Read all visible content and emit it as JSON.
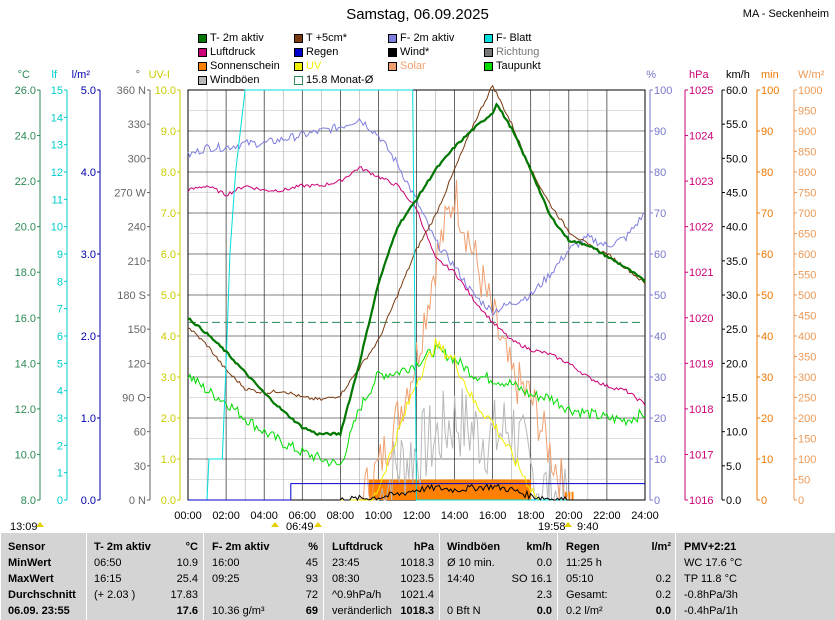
{
  "title": "Samstag, 06.09.2025",
  "station": "MA - Seckenheim",
  "legend": [
    {
      "label": "T- 2m aktiv",
      "color": "#007700",
      "box": true
    },
    {
      "label": "T +5cm*",
      "color": "#7a3a10",
      "box": true
    },
    {
      "label": "F- 2m aktiv",
      "color": "#7f7fdf",
      "box": true
    },
    {
      "label": "F- Blatt",
      "color": "#00dddd",
      "box": true
    },
    {
      "label": "Luftdruck",
      "color": "#cc0077",
      "box": true
    },
    {
      "label": "Regen",
      "color": "#0000cc",
      "box": true
    },
    {
      "label": "Wind*",
      "color": "#000000",
      "box": true
    },
    {
      "label": "Richtung",
      "color": "#777777",
      "box": true
    },
    {
      "label": "Sonnenschein",
      "color": "#ff8000",
      "box": true
    },
    {
      "label": "UV",
      "color": "#f0f000",
      "box": true
    },
    {
      "label": "Solar",
      "color": "#f0a070",
      "box": true
    },
    {
      "label": "Taupunkt",
      "color": "#00dd00",
      "box": true
    },
    {
      "label": "Windböen",
      "color": "#b8b8b8",
      "box": true
    },
    {
      "label": "15.8 Monat-Ø",
      "color": "#2c8a55",
      "box": false
    }
  ],
  "axes": {
    "left": [
      {
        "unit": "°C",
        "color": "#2c8a55",
        "ticks": [
          "26.0",
          "24.0",
          "22.0",
          "20.0",
          "18.0",
          "16.0",
          "14.0",
          "12.0",
          "10.0",
          "8.0"
        ]
      },
      {
        "unit": "lf",
        "color": "#00cccc",
        "ticks": [
          "15",
          "14",
          "13",
          "12",
          "11",
          "10",
          "9",
          "8",
          "7",
          "6",
          "5",
          "4",
          "3",
          "2",
          "1",
          "0"
        ]
      },
      {
        "unit": "l/m²",
        "color": "#0000aa",
        "ticks": [
          "5.0",
          "4.0",
          "3.0",
          "2.0",
          "1.0",
          "0.0"
        ]
      },
      {
        "unit": "°",
        "color": "#666666",
        "ticks": [
          "360 N",
          "330",
          "300",
          "270 W",
          "240",
          "210",
          "180 S",
          "150",
          "120",
          "90 O",
          "60",
          "30",
          "0 N"
        ]
      },
      {
        "unit": "UV-I",
        "color": "#cccc00",
        "ticks": [
          "10.0",
          "9.0",
          "8.0",
          "7.0",
          "6.0",
          "5.0",
          "4.0",
          "3.0",
          "2.0",
          "1.0",
          "0.0"
        ]
      }
    ],
    "right": [
      {
        "unit": "%",
        "color": "#7777cc",
        "ticks": [
          "100",
          "90",
          "80",
          "70",
          "60",
          "50",
          "40",
          "30",
          "20",
          "10",
          "0"
        ]
      },
      {
        "unit": "hPa",
        "color": "#cc0077",
        "ticks": [
          "1025",
          "1024",
          "1023",
          "1022",
          "1021",
          "1020",
          "1019",
          "1018",
          "1017",
          "1016"
        ]
      },
      {
        "unit": "km/h",
        "color": "#000000",
        "ticks": [
          "60.0",
          "55.0",
          "50.0",
          "45.0",
          "40.0",
          "35.0",
          "30.0",
          "25.0",
          "20.0",
          "15.0",
          "10.0",
          "5.0",
          "0.0"
        ]
      },
      {
        "unit": "min",
        "color": "#ee7700",
        "ticks": [
          "100",
          "90",
          "80",
          "70",
          "60",
          "50",
          "40",
          "30",
          "20",
          "10",
          "0"
        ]
      },
      {
        "unit": "W/m²",
        "color": "#ee9955",
        "ticks": [
          "1000",
          "950",
          "900",
          "850",
          "800",
          "750",
          "700",
          "650",
          "600",
          "550",
          "500",
          "450",
          "400",
          "350",
          "300",
          "250",
          "200",
          "150",
          "100",
          "50",
          "0"
        ]
      }
    ]
  },
  "time_ticks": [
    "00:00",
    "02:00",
    "04:00",
    "06:00",
    "08:00",
    "10:00",
    "12:00",
    "14:00",
    "16:00",
    "18:00",
    "20:00",
    "22:00",
    "24:00"
  ],
  "sun_events": {
    "sunrise_left": "13:09",
    "dawn": "06:49",
    "sunset": "19:58",
    "dusk": "9:40"
  },
  "chart_data": {
    "type": "line",
    "x_unit": "hour",
    "series": [
      {
        "name": "T- 2m aktiv",
        "unit": "°C",
        "values": [
          [
            0,
            16.0
          ],
          [
            1,
            15.3
          ],
          [
            2,
            14.5
          ],
          [
            3,
            13.6
          ],
          [
            4,
            12.7
          ],
          [
            5,
            11.9
          ],
          [
            6,
            11.2
          ],
          [
            6.8,
            10.9
          ],
          [
            7,
            10.9
          ],
          [
            8,
            10.9
          ],
          [
            9,
            14
          ],
          [
            10,
            17.5
          ],
          [
            11,
            20
          ],
          [
            12,
            21.2
          ],
          [
            13,
            22.5
          ],
          [
            14,
            23.5
          ],
          [
            15,
            24.3
          ],
          [
            16,
            25.0
          ],
          [
            16.2,
            25.4
          ],
          [
            17,
            24.3
          ],
          [
            18,
            22.5
          ],
          [
            19,
            20.5
          ],
          [
            20,
            19.4
          ],
          [
            21,
            19.2
          ],
          [
            22,
            18.7
          ],
          [
            23,
            18.2
          ],
          [
            24,
            17.6
          ]
        ]
      },
      {
        "name": "T +5cm*",
        "unit": "°C",
        "values": [
          [
            0,
            15.6
          ],
          [
            1,
            14.8
          ],
          [
            2,
            13.7
          ],
          [
            3,
            12.9
          ],
          [
            4,
            12.7
          ],
          [
            5,
            12.8
          ],
          [
            6,
            12.5
          ],
          [
            7,
            12.4
          ],
          [
            8,
            12.6
          ],
          [
            9,
            13.8
          ],
          [
            10,
            15.0
          ],
          [
            11,
            17.0
          ],
          [
            12,
            19.0
          ],
          [
            13,
            20.5
          ],
          [
            14,
            22.5
          ],
          [
            15,
            24.5
          ],
          [
            16,
            26.2
          ],
          [
            17,
            24.5
          ],
          [
            18,
            22.5
          ],
          [
            19,
            21.0
          ],
          [
            20,
            19.8
          ],
          [
            21,
            19.2
          ],
          [
            22,
            18.8
          ],
          [
            23,
            18.2
          ],
          [
            24,
            17.5
          ]
        ]
      },
      {
        "name": "F- 2m aktiv",
        "unit": "%",
        "values": [
          [
            0,
            84
          ],
          [
            1,
            86
          ],
          [
            2,
            86
          ],
          [
            3,
            87
          ],
          [
            4,
            87
          ],
          [
            5,
            88
          ],
          [
            6,
            89
          ],
          [
            7,
            90
          ],
          [
            8,
            91
          ],
          [
            9,
            93
          ],
          [
            10,
            89
          ],
          [
            11,
            82
          ],
          [
            12,
            73
          ],
          [
            13,
            63
          ],
          [
            14,
            57
          ],
          [
            15,
            50
          ],
          [
            16,
            46
          ],
          [
            17,
            48
          ],
          [
            18,
            50
          ],
          [
            19,
            55
          ],
          [
            20,
            61
          ],
          [
            21,
            64
          ],
          [
            22,
            62
          ],
          [
            23,
            64
          ],
          [
            24,
            70
          ]
        ]
      },
      {
        "name": "F- Blatt",
        "unit": "lf",
        "values": [
          [
            0,
            0
          ],
          [
            1.0,
            0
          ],
          [
            1.1,
            1.5
          ],
          [
            1.8,
            1.5
          ],
          [
            2.0,
            5
          ],
          [
            2.2,
            9
          ],
          [
            2.5,
            12
          ],
          [
            3,
            15
          ],
          [
            11.8,
            15
          ],
          [
            12.0,
            0
          ],
          [
            24,
            0
          ]
        ]
      },
      {
        "name": "Luftdruck",
        "unit": "hPa",
        "values": [
          [
            0,
            1022.8
          ],
          [
            1,
            1022.9
          ],
          [
            2,
            1022.7
          ],
          [
            3,
            1022.9
          ],
          [
            4,
            1022.8
          ],
          [
            5,
            1022.8
          ],
          [
            6,
            1022.9
          ],
          [
            7,
            1022.9
          ],
          [
            8,
            1023.0
          ],
          [
            9,
            1023.3
          ],
          [
            10,
            1023.1
          ],
          [
            11,
            1022.9
          ],
          [
            12,
            1022.4
          ],
          [
            13,
            1021.3
          ],
          [
            14,
            1021.0
          ],
          [
            15,
            1020.4
          ],
          [
            16,
            1019.9
          ],
          [
            17,
            1019.5
          ],
          [
            18,
            1019.3
          ],
          [
            19,
            1019.2
          ],
          [
            20,
            1019.0
          ],
          [
            21,
            1018.7
          ],
          [
            22,
            1018.5
          ],
          [
            23,
            1018.4
          ],
          [
            24,
            1018.1
          ]
        ]
      },
      {
        "name": "Regen",
        "unit": "l/m²",
        "values": [
          [
            0,
            0
          ],
          [
            5.4,
            0
          ],
          [
            5.4,
            0.2
          ],
          [
            24,
            0.2
          ]
        ]
      },
      {
        "name": "Wind*",
        "unit": "km/h",
        "values": [
          [
            0,
            0
          ],
          [
            8,
            0
          ],
          [
            10,
            0.4
          ],
          [
            11,
            0.8
          ],
          [
            12,
            1.5
          ],
          [
            13,
            1.8
          ],
          [
            14,
            1.5
          ],
          [
            15,
            1.8
          ],
          [
            16,
            2.0
          ],
          [
            17,
            1.5
          ],
          [
            18,
            0.6
          ],
          [
            19,
            0.2
          ],
          [
            20,
            0
          ],
          [
            24,
            0
          ]
        ]
      },
      {
        "name": "UV",
        "unit": "UV-I",
        "values": [
          [
            0,
            0
          ],
          [
            9.7,
            0
          ],
          [
            10,
            0.3
          ],
          [
            11,
            1.6
          ],
          [
            12,
            2.9
          ],
          [
            13,
            3.8
          ],
          [
            14,
            3.4
          ],
          [
            15,
            2.4
          ],
          [
            16,
            1.9
          ],
          [
            17,
            1.1
          ],
          [
            18,
            0.3
          ],
          [
            18.4,
            0
          ],
          [
            24,
            0
          ]
        ]
      },
      {
        "name": "Solar",
        "unit": "W/m²",
        "values": [
          [
            0,
            0
          ],
          [
            9,
            0
          ],
          [
            10,
            80
          ],
          [
            11,
            200
          ],
          [
            12,
            350
          ],
          [
            13,
            580
          ],
          [
            14,
            750
          ],
          [
            15,
            600
          ],
          [
            16,
            450
          ],
          [
            17,
            300
          ],
          [
            18,
            250
          ],
          [
            19,
            120
          ],
          [
            20,
            0
          ],
          [
            24,
            0
          ]
        ]
      },
      {
        "name": "Taupunkt",
        "unit": "°C",
        "values": [
          [
            0,
            13.5
          ],
          [
            1,
            12.8
          ],
          [
            2,
            12.3
          ],
          [
            3,
            11.6
          ],
          [
            4,
            11.0
          ],
          [
            5,
            10.5
          ],
          [
            6,
            10.1
          ],
          [
            7,
            9.8
          ],
          [
            8,
            9.5
          ],
          [
            9,
            12.0
          ],
          [
            10,
            13.5
          ],
          [
            11,
            13.6
          ],
          [
            12,
            14.0
          ],
          [
            13,
            14.6
          ],
          [
            14,
            14.2
          ],
          [
            15,
            13.5
          ],
          [
            16,
            13.3
          ],
          [
            17,
            13.1
          ],
          [
            18,
            12.6
          ],
          [
            19,
            12.5
          ],
          [
            20,
            12.0
          ],
          [
            21,
            11.8
          ],
          [
            22,
            11.6
          ],
          [
            23,
            11.5
          ],
          [
            24,
            11.8
          ]
        ]
      },
      {
        "name": "Windböen",
        "unit": "km/h",
        "values": [
          [
            0,
            0
          ],
          [
            10,
            0
          ],
          [
            11,
            5
          ],
          [
            12,
            7
          ],
          [
            13,
            9
          ],
          [
            14,
            12
          ],
          [
            15,
            10
          ],
          [
            16,
            9
          ],
          [
            17,
            11
          ],
          [
            18,
            4
          ],
          [
            19,
            0.5
          ],
          [
            20,
            0
          ],
          [
            24,
            0
          ]
        ]
      },
      {
        "name": "Sonnenschein",
        "unit": "min",
        "values": [
          [
            9.5,
            5
          ],
          [
            18,
            5
          ],
          [
            18.2,
            2
          ],
          [
            20,
            2
          ]
        ]
      }
    ],
    "monthly_average": {
      "label": "15.8 Monat-Ø",
      "value": 15.8
    }
  },
  "table": {
    "rows": [
      {
        "cells": [
          "Sensor",
          "T- 2m aktiv",
          "°C",
          "F- 2m aktiv",
          "%",
          "Luftdruck",
          "hPa",
          "Windböen",
          "km/h",
          "Regen",
          "l/m²",
          "PMV+2:21"
        ]
      },
      {
        "cells": [
          "MinWert",
          "06:50",
          "10.9",
          "16:00",
          "45",
          "23:45",
          "1018.3",
          "Ø 10 min.",
          "0.0",
          "11:25 h",
          "",
          "WC 17.6 °C"
        ]
      },
      {
        "cells": [
          "MaxWert",
          "16:15",
          "25.4",
          "09:25",
          "93",
          "08:30",
          "1023.5",
          "14:40",
          "SO 16.1",
          "05:10",
          "0.2",
          "TP 11.8 °C"
        ]
      },
      {
        "cells": [
          "Durchschnitt",
          "(+ 2.03 )",
          "17.83",
          "",
          "72",
          "^0.9hPa/h",
          "1021.4",
          "",
          "2.3",
          "Gesamt:",
          "0.2",
          "-0.8hPa/3h"
        ]
      },
      {
        "cells": [
          "06.09. 23:55",
          "",
          "17.6",
          "10.36 g/m³",
          "69",
          "veränderlich",
          "1018.3",
          "0 Bft N",
          "0.0",
          "0.2 l/m²",
          "0.0",
          "-0.4hPa/1h"
        ]
      }
    ]
  }
}
